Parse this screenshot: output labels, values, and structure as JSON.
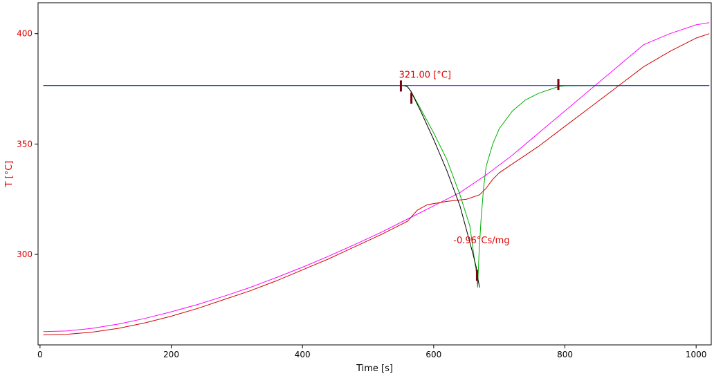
{
  "chart_data": {
    "type": "line",
    "title": "",
    "xlabel": "Time [s]",
    "ylabel": "T  [°C]",
    "xlim": [
      -3,
      1023
    ],
    "ylim": [
      259,
      414
    ],
    "xticks": [
      0,
      200,
      400,
      600,
      800,
      1000
    ],
    "yticks": [
      300,
      350,
      400
    ],
    "grid": false,
    "legend": "none",
    "colors": {
      "axis": "#000000",
      "ytick_text": "#e00000",
      "annotation": "#e00000",
      "marker": "#7a0010"
    },
    "series": [
      {
        "color": "#ff00ff",
        "points": [
          [
            5,
            265
          ],
          [
            40,
            265.3
          ],
          [
            80,
            266.5
          ],
          [
            120,
            268.5
          ],
          [
            160,
            271
          ],
          [
            200,
            274
          ],
          [
            240,
            277.3
          ],
          [
            280,
            281
          ],
          [
            320,
            285
          ],
          [
            360,
            289.5
          ],
          [
            400,
            294.2
          ],
          [
            440,
            299.2
          ],
          [
            480,
            304.5
          ],
          [
            520,
            310
          ],
          [
            560,
            316
          ],
          [
            600,
            322
          ],
          [
            640,
            328
          ],
          [
            680,
            336
          ],
          [
            720,
            345
          ],
          [
            760,
            355
          ],
          [
            800,
            365
          ],
          [
            840,
            375
          ],
          [
            880,
            385
          ],
          [
            920,
            395
          ],
          [
            960,
            400
          ],
          [
            1000,
            404
          ],
          [
            1020,
            405
          ]
        ]
      },
      {
        "color": "#d00000",
        "points": [
          [
            5,
            263.5
          ],
          [
            40,
            263.8
          ],
          [
            80,
            264.8
          ],
          [
            120,
            266.5
          ],
          [
            160,
            269
          ],
          [
            200,
            272
          ],
          [
            240,
            275.5
          ],
          [
            280,
            279.5
          ],
          [
            320,
            283.5
          ],
          [
            360,
            288
          ],
          [
            400,
            293
          ],
          [
            440,
            298
          ],
          [
            480,
            303.5
          ],
          [
            520,
            309
          ],
          [
            560,
            315
          ],
          [
            575,
            320
          ],
          [
            590,
            322.5
          ],
          [
            620,
            324
          ],
          [
            650,
            325
          ],
          [
            670,
            327
          ],
          [
            680,
            330
          ],
          [
            690,
            334
          ],
          [
            700,
            337
          ],
          [
            720,
            341
          ],
          [
            760,
            349
          ],
          [
            800,
            358
          ],
          [
            840,
            367
          ],
          [
            880,
            376
          ],
          [
            920,
            385
          ],
          [
            960,
            392
          ],
          [
            1000,
            398
          ],
          [
            1020,
            400
          ]
        ]
      },
      {
        "color": "#00b000",
        "points": [
          [
            5,
            376.5
          ],
          [
            100,
            376.5
          ],
          [
            200,
            376.5
          ],
          [
            300,
            376.5
          ],
          [
            400,
            376.5
          ],
          [
            500,
            376.5
          ],
          [
            550,
            376.5
          ],
          [
            555,
            376.4
          ],
          [
            560,
            376
          ],
          [
            565,
            374
          ],
          [
            580,
            366
          ],
          [
            600,
            355
          ],
          [
            620,
            343
          ],
          [
            640,
            327
          ],
          [
            655,
            313
          ],
          [
            662,
            298
          ],
          [
            665,
            292
          ],
          [
            667,
            285
          ],
          [
            669,
            300
          ],
          [
            672,
            315
          ],
          [
            676,
            330
          ],
          [
            680,
            340
          ],
          [
            690,
            350
          ],
          [
            700,
            357
          ],
          [
            720,
            365
          ],
          [
            740,
            370
          ],
          [
            760,
            373
          ],
          [
            780,
            375
          ],
          [
            790,
            376
          ],
          [
            800,
            376.4
          ],
          [
            900,
            376.5
          ],
          [
            1020,
            376.5
          ]
        ]
      },
      {
        "color": "#000000",
        "points": [
          [
            555,
            376.5
          ],
          [
            560,
            376
          ],
          [
            565,
            374
          ],
          [
            580,
            365
          ],
          [
            600,
            352
          ],
          [
            620,
            338
          ],
          [
            640,
            322
          ],
          [
            660,
            300
          ],
          [
            665,
            294
          ],
          [
            668,
            288
          ],
          [
            670,
            285
          ]
        ]
      },
      {
        "color": "#0000ff",
        "points": [
          [
            5,
            376.5
          ],
          [
            1020,
            376.5
          ]
        ]
      }
    ],
    "markers": [
      {
        "x": 550,
        "y": 376.3
      },
      {
        "x": 566,
        "y": 370.8
      },
      {
        "x": 666,
        "y": 290.5
      },
      {
        "x": 790,
        "y": 377
      }
    ],
    "annotations": [
      {
        "text": "321.00 [°C]",
        "x": 547,
        "y": 380
      },
      {
        "text": "-0.96°Cs/mg",
        "x": 630,
        "y": 305
      }
    ]
  }
}
